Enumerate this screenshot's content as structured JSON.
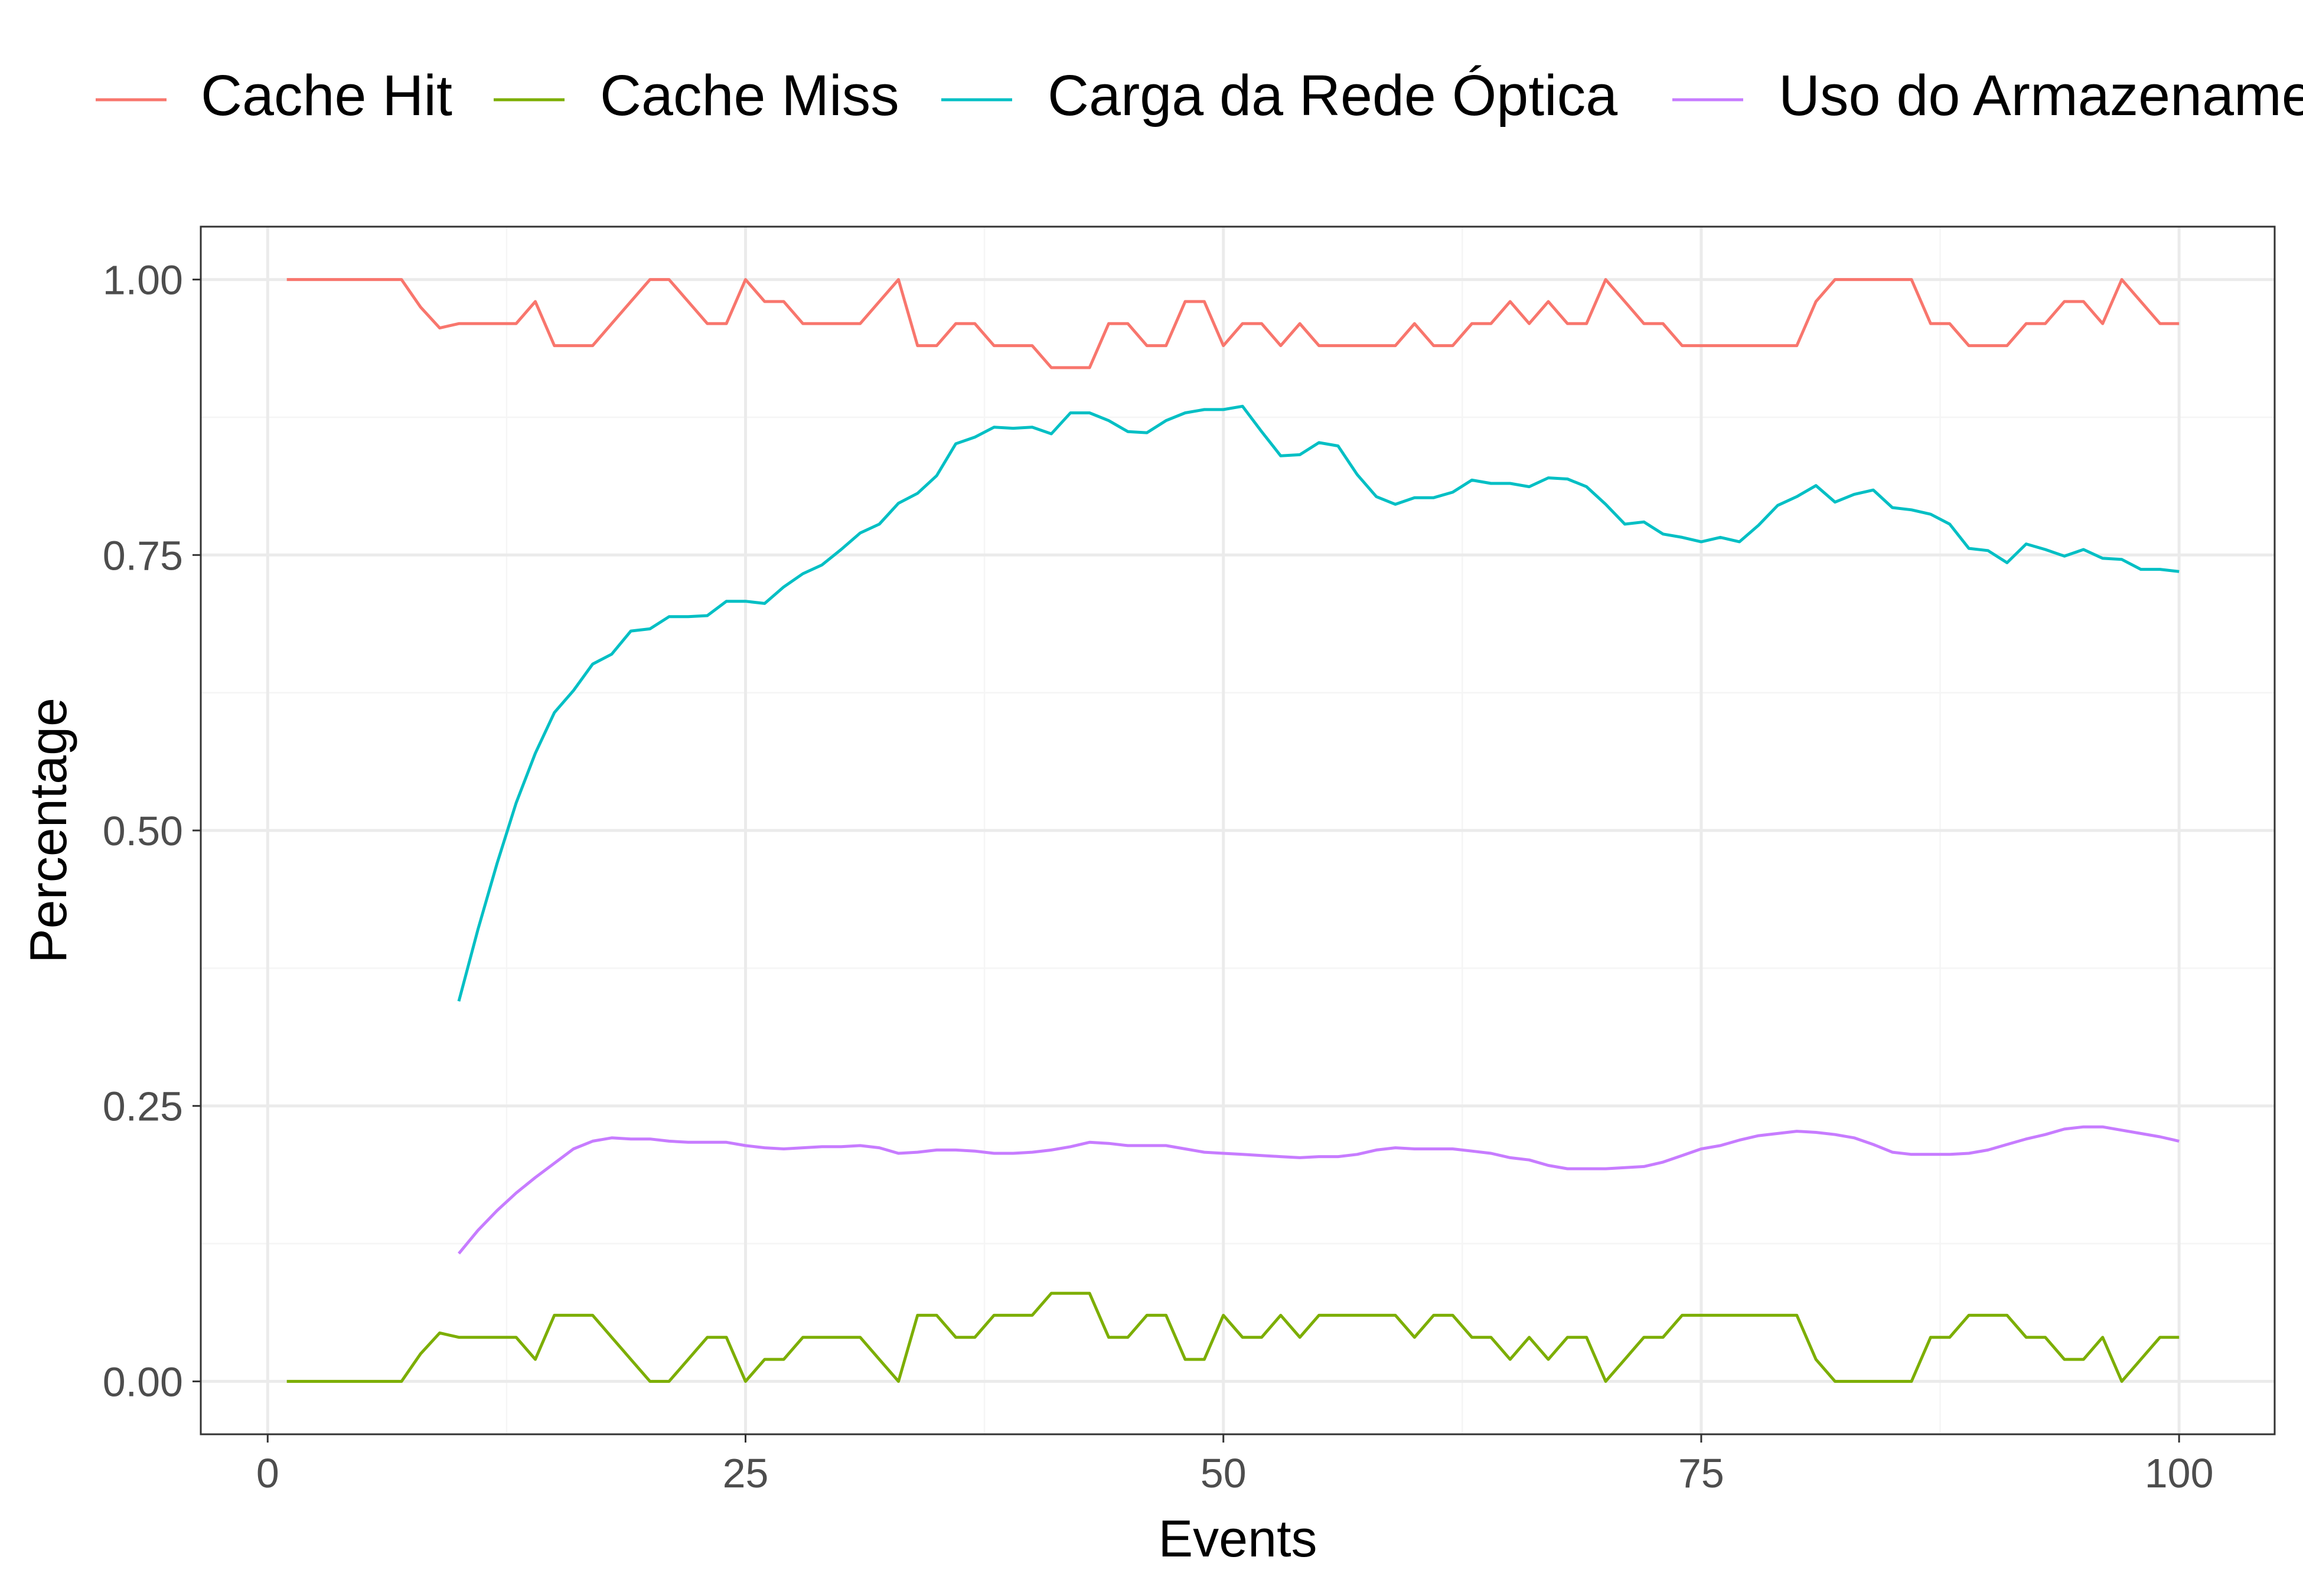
{
  "colors": {
    "cache_hit": "#F8766D",
    "cache_miss": "#7CAE00",
    "optical_load": "#00BFC4",
    "storage_use": "#C77CFF",
    "grid_major": "#EBEBEB",
    "grid_minor": "#F5F5F5",
    "panel_border": "#333333",
    "axis_text": "#4D4D4D",
    "title_text": "#000000"
  },
  "chart_data": {
    "type": "line",
    "title": "",
    "xlabel": "Events",
    "ylabel": "Percentage",
    "xlim": [
      -3.5,
      105
    ],
    "ylim": [
      -0.048,
      1.048
    ],
    "x_ticks": [
      0,
      25,
      50,
      75,
      100
    ],
    "x_tick_labels": [
      "0",
      "25",
      "50",
      "75",
      "100"
    ],
    "y_ticks": [
      0,
      0.25,
      0.5,
      0.75,
      1.0
    ],
    "y_tick_labels": [
      "0.00",
      "0.25",
      "0.50",
      "0.75",
      "1.00"
    ],
    "grid": true,
    "legend_position": "top",
    "series": [
      {
        "name": "Cache Hit",
        "color_key": "cache_hit",
        "x": [
          1,
          2,
          3,
          4,
          5,
          6,
          7,
          8,
          9,
          10,
          11,
          12,
          13,
          14,
          15,
          16,
          17,
          18,
          19,
          20,
          21,
          22,
          23,
          24,
          25,
          26,
          27,
          28,
          29,
          30,
          31,
          32,
          33,
          34,
          35,
          36,
          37,
          38,
          39,
          40,
          41,
          42,
          43,
          44,
          45,
          46,
          47,
          48,
          49,
          50,
          51,
          52,
          53,
          54,
          55,
          56,
          57,
          58,
          59,
          60,
          61,
          62,
          63,
          64,
          65,
          66,
          67,
          68,
          69,
          70,
          71,
          72,
          73,
          74,
          75,
          76,
          77,
          78,
          79,
          80,
          81,
          82,
          83,
          84,
          85,
          86,
          87,
          88,
          89,
          90,
          91,
          92,
          93,
          94,
          95,
          96,
          97,
          98,
          99,
          100
        ],
        "values": [
          1.0,
          1.0,
          1.0,
          1.0,
          1.0,
          1.0,
          1.0,
          0.975,
          0.956,
          0.96,
          0.96,
          0.96,
          0.96,
          0.98,
          0.94,
          0.94,
          0.94,
          0.96,
          0.98,
          1.0,
          1.0,
          0.98,
          0.96,
          0.96,
          1.0,
          0.98,
          0.98,
          0.96,
          0.96,
          0.96,
          0.96,
          0.98,
          1.0,
          0.94,
          0.94,
          0.96,
          0.96,
          0.94,
          0.94,
          0.94,
          0.92,
          0.92,
          0.92,
          0.96,
          0.96,
          0.94,
          0.94,
          0.98,
          0.98,
          0.94,
          0.96,
          0.96,
          0.94,
          0.96,
          0.94,
          0.94,
          0.94,
          0.94,
          0.94,
          0.96,
          0.94,
          0.94,
          0.96,
          0.96,
          0.98,
          0.96,
          0.98,
          0.96,
          0.96,
          1.0,
          0.98,
          0.96,
          0.96,
          0.94,
          0.94,
          0.94,
          0.94,
          0.94,
          0.94,
          0.94,
          0.98,
          1.0,
          1.0,
          1.0,
          1.0,
          1.0,
          0.96,
          0.96,
          0.94,
          0.94,
          0.94,
          0.96,
          0.96,
          0.98,
          0.98,
          0.96,
          1.0,
          0.98,
          0.96,
          0.96
        ]
      },
      {
        "name": "Cache Miss",
        "color_key": "cache_miss",
        "x": [
          1,
          2,
          3,
          4,
          5,
          6,
          7,
          8,
          9,
          10,
          11,
          12,
          13,
          14,
          15,
          16,
          17,
          18,
          19,
          20,
          21,
          22,
          23,
          24,
          25,
          26,
          27,
          28,
          29,
          30,
          31,
          32,
          33,
          34,
          35,
          36,
          37,
          38,
          39,
          40,
          41,
          42,
          43,
          44,
          45,
          46,
          47,
          48,
          49,
          50,
          51,
          52,
          53,
          54,
          55,
          56,
          57,
          58,
          59,
          60,
          61,
          62,
          63,
          64,
          65,
          66,
          67,
          68,
          69,
          70,
          71,
          72,
          73,
          74,
          75,
          76,
          77,
          78,
          79,
          80,
          81,
          82,
          83,
          84,
          85,
          86,
          87,
          88,
          89,
          90,
          91,
          92,
          93,
          94,
          95,
          96,
          97,
          98,
          99,
          100
        ],
        "values": [
          0.0,
          0.0,
          0.0,
          0.0,
          0.0,
          0.0,
          0.0,
          0.025,
          0.044,
          0.04,
          0.04,
          0.04,
          0.04,
          0.02,
          0.06,
          0.06,
          0.06,
          0.04,
          0.02,
          0.0,
          0.0,
          0.02,
          0.04,
          0.04,
          0.0,
          0.02,
          0.02,
          0.04,
          0.04,
          0.04,
          0.04,
          0.02,
          0.0,
          0.06,
          0.06,
          0.04,
          0.04,
          0.06,
          0.06,
          0.06,
          0.08,
          0.08,
          0.08,
          0.04,
          0.04,
          0.06,
          0.06,
          0.02,
          0.02,
          0.06,
          0.04,
          0.04,
          0.06,
          0.04,
          0.06,
          0.06,
          0.06,
          0.06,
          0.06,
          0.04,
          0.06,
          0.06,
          0.04,
          0.04,
          0.02,
          0.04,
          0.02,
          0.04,
          0.04,
          0.0,
          0.02,
          0.04,
          0.04,
          0.06,
          0.06,
          0.06,
          0.06,
          0.06,
          0.06,
          0.06,
          0.02,
          0.0,
          0.0,
          0.0,
          0.0,
          0.0,
          0.04,
          0.04,
          0.06,
          0.06,
          0.06,
          0.04,
          0.04,
          0.02,
          0.02,
          0.04,
          0.0,
          0.02,
          0.04,
          0.04
        ]
      },
      {
        "name": "Carga da Rede Óptica",
        "color_key": "optical_load",
        "x": [
          10,
          11,
          12,
          13,
          14,
          15,
          16,
          17,
          18,
          19,
          20,
          21,
          22,
          23,
          24,
          25,
          26,
          27,
          28,
          29,
          30,
          31,
          32,
          33,
          34,
          35,
          36,
          37,
          38,
          39,
          40,
          41,
          42,
          43,
          44,
          45,
          46,
          47,
          48,
          49,
          50,
          51,
          52,
          53,
          54,
          55,
          56,
          57,
          58,
          59,
          60,
          61,
          62,
          63,
          64,
          65,
          66,
          67,
          68,
          69,
          70,
          71,
          72,
          73,
          74,
          75,
          76,
          77,
          78,
          79,
          80,
          81,
          82,
          83,
          84,
          85,
          86,
          87,
          88,
          89,
          90,
          91,
          92,
          93,
          94,
          95,
          96,
          97,
          98,
          99,
          100
        ],
        "values": [
          0.345,
          0.41,
          0.47,
          0.525,
          0.57,
          0.607,
          0.627,
          0.651,
          0.66,
          0.681,
          0.683,
          0.694,
          0.694,
          0.695,
          0.708,
          0.708,
          0.706,
          0.721,
          0.733,
          0.741,
          0.755,
          0.77,
          0.778,
          0.797,
          0.806,
          0.822,
          0.851,
          0.857,
          0.866,
          0.865,
          0.866,
          0.86,
          0.879,
          0.879,
          0.872,
          0.862,
          0.861,
          0.872,
          0.879,
          0.882,
          0.882,
          0.885,
          0.862,
          0.84,
          0.841,
          0.852,
          0.849,
          0.823,
          0.803,
          0.796,
          0.802,
          0.802,
          0.807,
          0.818,
          0.815,
          0.815,
          0.812,
          0.82,
          0.819,
          0.812,
          0.796,
          0.778,
          0.78,
          0.769,
          0.766,
          0.762,
          0.766,
          0.762,
          0.777,
          0.795,
          0.803,
          0.813,
          0.798,
          0.805,
          0.809,
          0.793,
          0.791,
          0.787,
          0.778,
          0.756,
          0.754,
          0.743,
          0.76,
          0.755,
          0.749,
          0.755,
          0.747,
          0.746,
          0.737,
          0.737,
          0.735
        ]
      },
      {
        "name": "Uso do Armazenamento",
        "color_key": "storage_use",
        "x": [
          10,
          11,
          12,
          13,
          14,
          15,
          16,
          17,
          18,
          19,
          20,
          21,
          22,
          23,
          24,
          25,
          26,
          27,
          28,
          29,
          30,
          31,
          32,
          33,
          34,
          35,
          36,
          37,
          38,
          39,
          40,
          41,
          42,
          43,
          44,
          45,
          46,
          47,
          48,
          49,
          50,
          51,
          52,
          53,
          54,
          55,
          56,
          57,
          58,
          59,
          60,
          61,
          62,
          63,
          64,
          65,
          66,
          67,
          68,
          69,
          70,
          71,
          72,
          73,
          74,
          75,
          76,
          77,
          78,
          79,
          80,
          81,
          82,
          83,
          84,
          85,
          86,
          87,
          88,
          89,
          90,
          91,
          92,
          93,
          94,
          95,
          96,
          97,
          98,
          99,
          100
        ],
        "values": [
          0.116,
          0.137,
          0.155,
          0.171,
          0.185,
          0.198,
          0.211,
          0.218,
          0.221,
          0.22,
          0.22,
          0.218,
          0.217,
          0.217,
          0.217,
          0.214,
          0.212,
          0.211,
          0.212,
          0.213,
          0.213,
          0.214,
          0.212,
          0.207,
          0.208,
          0.21,
          0.21,
          0.209,
          0.207,
          0.207,
          0.208,
          0.21,
          0.213,
          0.217,
          0.216,
          0.214,
          0.214,
          0.214,
          0.211,
          0.208,
          0.207,
          0.206,
          0.205,
          0.204,
          0.203,
          0.204,
          0.204,
          0.206,
          0.21,
          0.212,
          0.211,
          0.211,
          0.211,
          0.209,
          0.207,
          0.203,
          0.201,
          0.196,
          0.193,
          0.193,
          0.193,
          0.194,
          0.195,
          0.199,
          0.205,
          0.211,
          0.214,
          0.219,
          0.223,
          0.225,
          0.227,
          0.226,
          0.224,
          0.221,
          0.215,
          0.208,
          0.206,
          0.206,
          0.206,
          0.207,
          0.21,
          0.215,
          0.22,
          0.224,
          0.229,
          0.231,
          0.231,
          0.228,
          0.225,
          0.222,
          0.218
        ]
      }
    ]
  }
}
